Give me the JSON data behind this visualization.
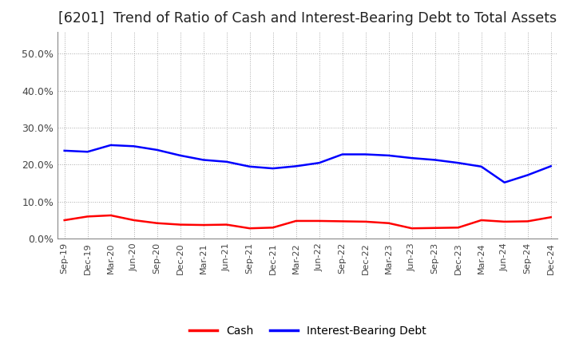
{
  "title": "[6201]  Trend of Ratio of Cash and Interest-Bearing Debt to Total Assets",
  "title_fontsize": 12.5,
  "ylim": [
    0.0,
    0.56
  ],
  "yticks": [
    0.0,
    0.1,
    0.2,
    0.3,
    0.4,
    0.5
  ],
  "ytick_labels": [
    "0.0%",
    "10.0%",
    "20.0%",
    "30.0%",
    "40.0%",
    "50.0%"
  ],
  "background_color": "#ffffff",
  "grid_color": "#aaaaaa",
  "x_labels": [
    "Sep-19",
    "Dec-19",
    "Mar-20",
    "Jun-20",
    "Sep-20",
    "Dec-20",
    "Mar-21",
    "Jun-21",
    "Sep-21",
    "Dec-21",
    "Mar-22",
    "Jun-22",
    "Sep-22",
    "Dec-22",
    "Mar-23",
    "Jun-23",
    "Sep-23",
    "Dec-23",
    "Mar-24",
    "Jun-24",
    "Sep-24",
    "Dec-24"
  ],
  "cash": [
    0.05,
    0.06,
    0.063,
    0.05,
    0.042,
    0.038,
    0.037,
    0.038,
    0.028,
    0.03,
    0.048,
    0.048,
    0.047,
    0.046,
    0.042,
    0.028,
    0.029,
    0.03,
    0.05,
    0.046,
    0.047,
    0.058
  ],
  "interest_bearing_debt": [
    0.238,
    0.235,
    0.253,
    0.25,
    0.24,
    0.225,
    0.213,
    0.208,
    0.195,
    0.19,
    0.196,
    0.205,
    0.228,
    0.228,
    0.225,
    0.218,
    0.213,
    0.205,
    0.195,
    0.152,
    0.172,
    0.196
  ],
  "cash_color": "#ff0000",
  "debt_color": "#0000ff",
  "legend_labels": [
    "Cash",
    "Interest-Bearing Debt"
  ],
  "line_width": 1.8
}
